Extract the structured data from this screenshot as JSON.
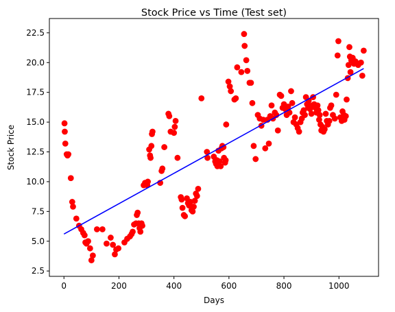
{
  "chart_data": {
    "type": "scatter",
    "title": "Stock Price vs Time (Test set)",
    "xlabel": "Days",
    "ylabel": "Stock Price",
    "xlim": [
      -53,
      1144
    ],
    "ylim": [
      2.05,
      23.7
    ],
    "xticks": [
      0,
      200,
      400,
      600,
      800,
      1000
    ],
    "yticks": [
      2.5,
      5.0,
      7.5,
      10.0,
      12.5,
      15.0,
      17.5,
      20.0,
      22.5
    ],
    "xtick_labels": [
      "0",
      "200",
      "400",
      "600",
      "800",
      "1000"
    ],
    "ytick_labels": [
      "2.5",
      "5.0",
      "7.5",
      "10.0",
      "12.5",
      "15.0",
      "17.5",
      "20.0",
      "22.5"
    ],
    "grid": false,
    "scatter_color": "#ff0000",
    "line_color": "#0000ff",
    "trend_line": {
      "x": [
        0,
        1090
      ],
      "y": [
        5.6,
        19.5
      ]
    },
    "points": [
      [
        2,
        14.9
      ],
      [
        3,
        14.2
      ],
      [
        5,
        13.2
      ],
      [
        10,
        12.3
      ],
      [
        13,
        12.2
      ],
      [
        16,
        12.3
      ],
      [
        25,
        10.3
      ],
      [
        30,
        8.3
      ],
      [
        33,
        7.9
      ],
      [
        45,
        6.9
      ],
      [
        55,
        6.3
      ],
      [
        63,
        6.0
      ],
      [
        70,
        5.7
      ],
      [
        75,
        5.5
      ],
      [
        78,
        4.9
      ],
      [
        82,
        4.8
      ],
      [
        88,
        5.0
      ],
      [
        95,
        4.4
      ],
      [
        100,
        3.4
      ],
      [
        105,
        3.8
      ],
      [
        120,
        6.0
      ],
      [
        140,
        6.0
      ],
      [
        155,
        4.8
      ],
      [
        170,
        5.3
      ],
      [
        178,
        4.7
      ],
      [
        185,
        3.9
      ],
      [
        190,
        4.3
      ],
      [
        198,
        4.4
      ],
      [
        220,
        4.9
      ],
      [
        230,
        5.2
      ],
      [
        240,
        5.4
      ],
      [
        246,
        5.6
      ],
      [
        250,
        5.8
      ],
      [
        255,
        6.4
      ],
      [
        262,
        6.5
      ],
      [
        265,
        7.2
      ],
      [
        268,
        7.4
      ],
      [
        272,
        6.5
      ],
      [
        275,
        6.1
      ],
      [
        278,
        5.8
      ],
      [
        282,
        6.5
      ],
      [
        285,
        6.3
      ],
      [
        290,
        9.7
      ],
      [
        295,
        9.9
      ],
      [
        300,
        9.8
      ],
      [
        303,
        9.7
      ],
      [
        305,
        10.0
      ],
      [
        310,
        12.7
      ],
      [
        313,
        12.2
      ],
      [
        315,
        12.0
      ],
      [
        318,
        13.0
      ],
      [
        320,
        14.0
      ],
      [
        322,
        14.2
      ],
      [
        350,
        9.9
      ],
      [
        355,
        10.9
      ],
      [
        358,
        11.1
      ],
      [
        365,
        12.9
      ],
      [
        380,
        15.7
      ],
      [
        383,
        15.5
      ],
      [
        388,
        14.2
      ],
      [
        400,
        14.1
      ],
      [
        403,
        14.6
      ],
      [
        406,
        15.1
      ],
      [
        413,
        12.0
      ],
      [
        425,
        8.7
      ],
      [
        428,
        8.5
      ],
      [
        431,
        7.8
      ],
      [
        436,
        7.2
      ],
      [
        440,
        7.1
      ],
      [
        447,
        8.6
      ],
      [
        451,
        8.2
      ],
      [
        455,
        8.0
      ],
      [
        460,
        8.3
      ],
      [
        464,
        7.6
      ],
      [
        468,
        7.5
      ],
      [
        472,
        7.9
      ],
      [
        476,
        8.4
      ],
      [
        480,
        9.0
      ],
      [
        484,
        8.8
      ],
      [
        488,
        9.4
      ],
      [
        500,
        17.0
      ],
      [
        520,
        12.5
      ],
      [
        522,
        12.0
      ],
      [
        545,
        12.1
      ],
      [
        550,
        11.7
      ],
      [
        553,
        11.5
      ],
      [
        556,
        11.8
      ],
      [
        558,
        11.3
      ],
      [
        562,
        12.6
      ],
      [
        566,
        11.7
      ],
      [
        570,
        11.3
      ],
      [
        573,
        12.8
      ],
      [
        576,
        13.0
      ],
      [
        580,
        12.9
      ],
      [
        582,
        12.0
      ],
      [
        586,
        11.6
      ],
      [
        588,
        11.8
      ],
      [
        590,
        14.8
      ],
      [
        598,
        18.4
      ],
      [
        603,
        18.0
      ],
      [
        607,
        17.6
      ],
      [
        620,
        16.9
      ],
      [
        625,
        17.0
      ],
      [
        630,
        19.6
      ],
      [
        645,
        19.2
      ],
      [
        655,
        22.4
      ],
      [
        657,
        21.4
      ],
      [
        663,
        20.2
      ],
      [
        667,
        19.3
      ],
      [
        675,
        18.3
      ],
      [
        680,
        18.3
      ],
      [
        685,
        16.6
      ],
      [
        690,
        13.0
      ],
      [
        697,
        11.9
      ],
      [
        705,
        15.6
      ],
      [
        712,
        15.3
      ],
      [
        718,
        14.7
      ],
      [
        725,
        15.2
      ],
      [
        732,
        12.8
      ],
      [
        740,
        15.2
      ],
      [
        745,
        13.2
      ],
      [
        750,
        15.5
      ],
      [
        755,
        16.4
      ],
      [
        760,
        15.3
      ],
      [
        767,
        15.8
      ],
      [
        772,
        15.6
      ],
      [
        778,
        14.3
      ],
      [
        785,
        17.3
      ],
      [
        790,
        17.2
      ],
      [
        795,
        16.2
      ],
      [
        800,
        16.5
      ],
      [
        805,
        16.1
      ],
      [
        810,
        15.6
      ],
      [
        815,
        16.3
      ],
      [
        820,
        15.8
      ],
      [
        826,
        17.6
      ],
      [
        830,
        16.6
      ],
      [
        835,
        15.0
      ],
      [
        840,
        15.4
      ],
      [
        845,
        14.8
      ],
      [
        850,
        14.5
      ],
      [
        855,
        14.2
      ],
      [
        860,
        15.0
      ],
      [
        865,
        15.3
      ],
      [
        868,
        15.8
      ],
      [
        872,
        16.0
      ],
      [
        876,
        15.6
      ],
      [
        880,
        17.1
      ],
      [
        884,
        16.5
      ],
      [
        888,
        16.2
      ],
      [
        890,
        16.8
      ],
      [
        895,
        16.1
      ],
      [
        900,
        15.7
      ],
      [
        903,
        16.4
      ],
      [
        906,
        17.1
      ],
      [
        910,
        16.5
      ],
      [
        915,
        16.2
      ],
      [
        918,
        15.8
      ],
      [
        922,
        16.4
      ],
      [
        925,
        16.0
      ],
      [
        928,
        15.2
      ],
      [
        930,
        15.6
      ],
      [
        933,
        14.8
      ],
      [
        936,
        14.3
      ],
      [
        940,
        14.6
      ],
      [
        944,
        14.2
      ],
      [
        948,
        14.4
      ],
      [
        952,
        15.7
      ],
      [
        956,
        15.1
      ],
      [
        960,
        14.8
      ],
      [
        965,
        15.1
      ],
      [
        968,
        16.2
      ],
      [
        972,
        16.4
      ],
      [
        978,
        15.6
      ],
      [
        985,
        15.3
      ],
      [
        990,
        17.3
      ],
      [
        995,
        20.6
      ],
      [
        998,
        21.8
      ],
      [
        1005,
        15.4
      ],
      [
        1010,
        15.1
      ],
      [
        1013,
        15.9
      ],
      [
        1018,
        15.6
      ],
      [
        1020,
        15.2
      ],
      [
        1025,
        15.5
      ],
      [
        1028,
        16.9
      ],
      [
        1032,
        18.7
      ],
      [
        1035,
        19.8
      ],
      [
        1038,
        21.3
      ],
      [
        1040,
        20.5
      ],
      [
        1042,
        19.2
      ],
      [
        1045,
        20.2
      ],
      [
        1050,
        20.4
      ],
      [
        1055,
        19.9
      ],
      [
        1060,
        20.1
      ],
      [
        1070,
        19.8
      ],
      [
        1080,
        20.0
      ],
      [
        1085,
        18.9
      ],
      [
        1090,
        21.0
      ]
    ]
  }
}
